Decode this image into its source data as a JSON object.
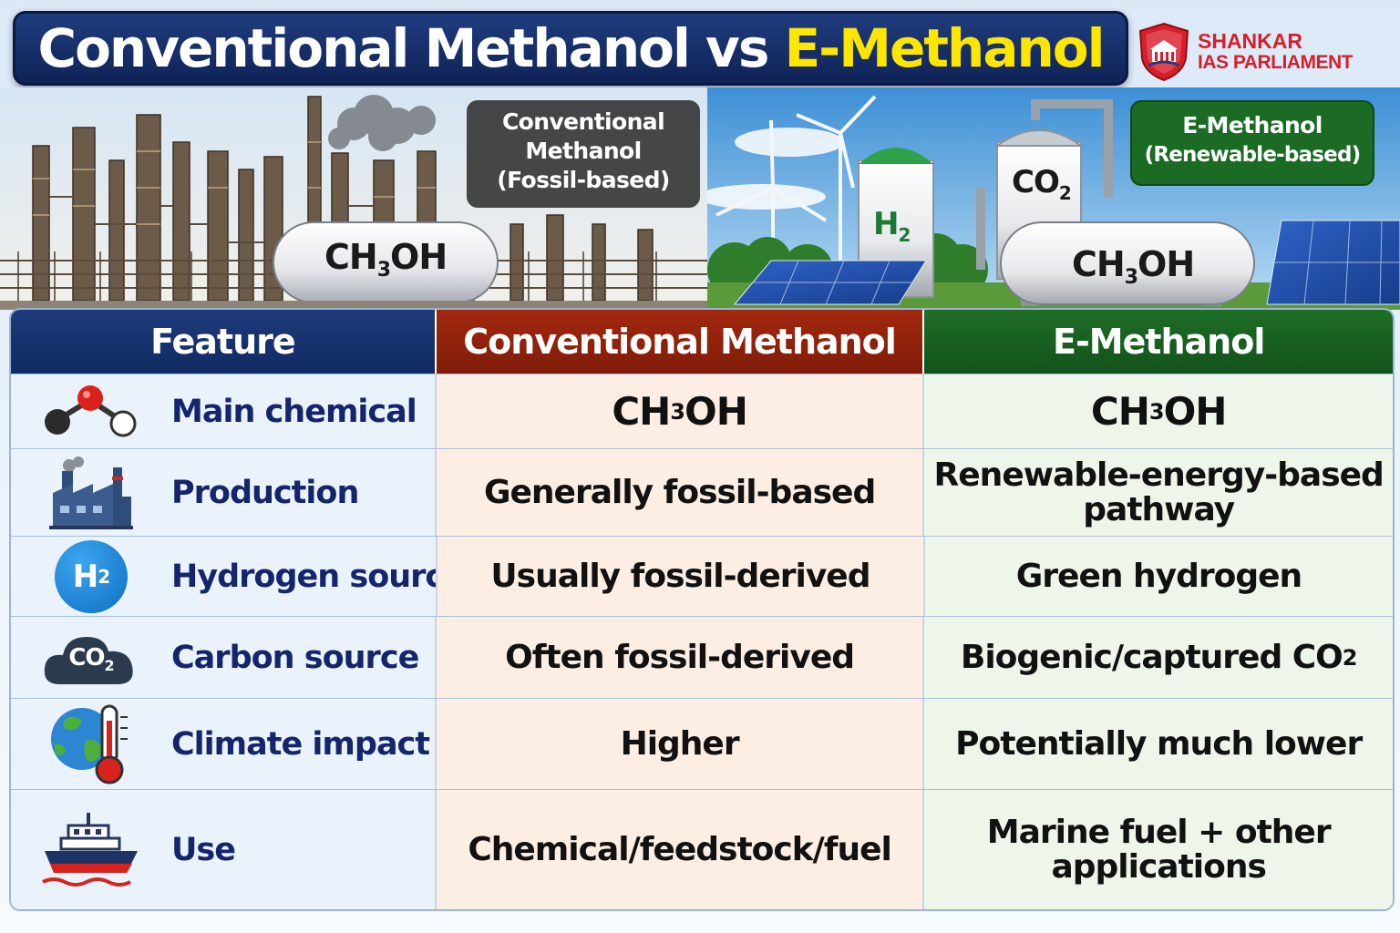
{
  "title": {
    "part1": "Conventional Methanol vs ",
    "part2": "E-Methanol"
  },
  "brand": {
    "line1": "SHANKAR",
    "line2": "IAS PARLIAMENT"
  },
  "scenes": {
    "left": {
      "label_line1": "Conventional",
      "label_line2": "Methanol",
      "label_line3": "(Fossil-based)",
      "tank_formula": {
        "main": "CH",
        "sub": "3",
        "tail": "OH"
      }
    },
    "right": {
      "label_line1": "E-Methanol",
      "label_line2": "(Renewable-based)",
      "h2": {
        "main": "H",
        "sub": "2"
      },
      "co2": {
        "main": "CO",
        "sub": "2"
      },
      "tank_formula": {
        "main": "CH",
        "sub": "3",
        "tail": "OH"
      }
    }
  },
  "table": {
    "headers": {
      "feature": "Feature",
      "conventional": "Conventional Methanol",
      "emethanol": "E-Methanol"
    },
    "rows": [
      {
        "icon": "molecule-icon",
        "feature": "Main chemical",
        "conventional": {
          "main": "CH",
          "sub": "3",
          "tail": "OH"
        },
        "emethanol": {
          "main": "CH",
          "sub": "3",
          "tail": "OH"
        }
      },
      {
        "icon": "factory-icon",
        "feature": "Production",
        "conventional": "Generally fossil-based",
        "emethanol_line1": "Renewable-energy-based",
        "emethanol_line2": "pathway"
      },
      {
        "icon": "hydrogen-icon",
        "icon_text": {
          "main": "H",
          "sub": "2"
        },
        "feature": "Hydrogen source",
        "conventional": "Usually fossil-derived",
        "emethanol": "Green hydrogen"
      },
      {
        "icon": "co2-cloud-icon",
        "icon_text": {
          "main": "CO",
          "sub": "2"
        },
        "feature": "Carbon source",
        "conventional": "Often fossil-derived",
        "emethanol": {
          "main": "Biogenic/captured CO",
          "sub": "2"
        }
      },
      {
        "icon": "globe-thermometer-icon",
        "feature": "Climate impact",
        "conventional": "Higher",
        "emethanol": "Potentially much lower"
      },
      {
        "icon": "ship-icon",
        "feature": "Use",
        "conventional": "Chemical/feedstock/fuel",
        "emethanol_line1": "Marine fuel + other",
        "emethanol_line2": "applications"
      }
    ]
  },
  "colors": {
    "title_bg": "#142c66",
    "title_accent": "#ffe600",
    "brand_red": "#d81e2a",
    "conventional_header": "#8f220b",
    "emethanol_header": "#176020",
    "feature_header": "#15306e"
  }
}
